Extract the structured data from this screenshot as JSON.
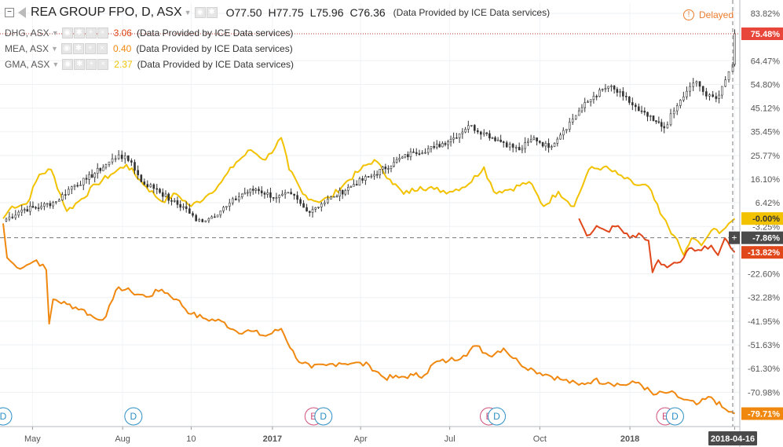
{
  "header": {
    "symbol": "REA GROUP FPO, D, ASX",
    "open": "O77.50",
    "high": "H77.75",
    "low": "L75.96",
    "close": "C76.36",
    "source": "(Data Provided by ICE Data services)",
    "delayed": "Delayed"
  },
  "legend": [
    {
      "symbol": "DHG, ASX",
      "value": "3.06",
      "color": "#e0471a",
      "source": "(Data Provided by ICE Data services)"
    },
    {
      "symbol": "MEA, ASX",
      "value": "0.40",
      "color": "#f0880f",
      "source": "(Data Provided by ICE Data services)"
    },
    {
      "symbol": "GMA, ASX",
      "value": "2.37",
      "color": "#f2c200",
      "source": "(Data Provided by ICE Data services)"
    }
  ],
  "chart_data": {
    "type": "line",
    "title": "",
    "x_tick_labels": [
      "May",
      "Aug",
      "10",
      "2017",
      "Apr",
      "Jul",
      "Oct",
      "2018",
      "18"
    ],
    "y_tick_labels": [
      "83.82%",
      "64.47%",
      "54.80%",
      "45.12%",
      "35.45%",
      "25.77%",
      "16.10%",
      "6.42%",
      "-3.25%",
      "-22.60%",
      "-32.28%",
      "-41.95%",
      "-51.63%",
      "-61.30%",
      "-70.98%"
    ],
    "y_unit": "percent change",
    "y_range": [
      -85,
      88
    ],
    "x_range": [
      "2016-04-01",
      "2018-04-20"
    ],
    "crosshair_date_label": "2018-04-16",
    "crosshair_value_label": "-7.86%",
    "last_value_labels": [
      {
        "series": "REA GROUP FPO, ASX",
        "label": "75.48%",
        "value": 75.48,
        "color": "#e8463a"
      },
      {
        "series": "GMA, ASX",
        "label": "-0.00%",
        "value": 0.0,
        "color": "#f2c200"
      },
      {
        "series": "DHG, ASX",
        "label": "-13.82%",
        "value": -13.82,
        "color": "#e0471a"
      },
      {
        "series": "MEA, ASX",
        "label": "-79.71%",
        "value": -79.71,
        "color": "#f0880f"
      }
    ],
    "events": [
      {
        "letter": "D",
        "date": "2016-04-01"
      },
      {
        "letter": "D",
        "date": "2016-08-12"
      },
      {
        "letter": "E",
        "date": "2017-02-12"
      },
      {
        "letter": "D",
        "date": "2017-02-22"
      },
      {
        "letter": "E",
        "date": "2017-08-10"
      },
      {
        "letter": "D",
        "date": "2017-08-18"
      },
      {
        "letter": "E",
        "date": "2018-02-06"
      },
      {
        "letter": "D",
        "date": "2018-02-16"
      }
    ],
    "series": [
      {
        "name": "REA GROUP FPO, ASX",
        "style": "candles",
        "color": "#333333",
        "points": [
          [
            "2016-04-01",
            -1.0
          ],
          [
            "2016-04-20",
            3.5
          ],
          [
            "2016-05-10",
            5.0
          ],
          [
            "2016-05-25",
            7.0
          ],
          [
            "2016-06-10",
            13.0
          ],
          [
            "2016-06-25",
            16.0
          ],
          [
            "2016-07-15",
            22.0
          ],
          [
            "2016-07-28",
            26.0
          ],
          [
            "2016-08-10",
            23.0
          ],
          [
            "2016-08-20",
            15.0
          ],
          [
            "2016-09-05",
            12.0
          ],
          [
            "2016-09-20",
            7.0
          ],
          [
            "2016-10-05",
            4.0
          ],
          [
            "2016-10-15",
            -1.0
          ],
          [
            "2016-10-28",
            0.0
          ],
          [
            "2016-11-15",
            5.0
          ],
          [
            "2016-12-01",
            10.0
          ],
          [
            "2016-12-15",
            12.0
          ],
          [
            "2017-01-05",
            8.5
          ],
          [
            "2017-01-20",
            10.0
          ],
          [
            "2017-02-05",
            3.0
          ],
          [
            "2017-02-20",
            6.0
          ],
          [
            "2017-03-05",
            9.0
          ],
          [
            "2017-03-25",
            14.0
          ],
          [
            "2017-04-15",
            18.0
          ],
          [
            "2017-05-05",
            23.0
          ],
          [
            "2017-05-25",
            27.0
          ],
          [
            "2017-06-15",
            29.0
          ],
          [
            "2017-07-05",
            33.0
          ],
          [
            "2017-07-20",
            38.0
          ],
          [
            "2017-08-05",
            35.0
          ],
          [
            "2017-08-25",
            31.0
          ],
          [
            "2017-09-10",
            28.0
          ],
          [
            "2017-09-25",
            33.0
          ],
          [
            "2017-10-10",
            29.0
          ],
          [
            "2017-10-25",
            36.0
          ],
          [
            "2017-11-10",
            44.0
          ],
          [
            "2017-11-25",
            50.0
          ],
          [
            "2017-12-10",
            54.0
          ],
          [
            "2017-12-25",
            50.0
          ],
          [
            "2018-01-10",
            44.0
          ],
          [
            "2018-01-25",
            40.0
          ],
          [
            "2018-02-05",
            37.0
          ],
          [
            "2018-02-15",
            44.0
          ],
          [
            "2018-02-28",
            52.0
          ],
          [
            "2018-03-10",
            56.0
          ],
          [
            "2018-03-20",
            50.0
          ],
          [
            "2018-03-30",
            49.0
          ],
          [
            "2018-04-05",
            54.0
          ],
          [
            "2018-04-12",
            60.0
          ],
          [
            "2018-04-16",
            63.0
          ],
          [
            "2018-04-18",
            75.5
          ]
        ]
      },
      {
        "name": "GMA, ASX",
        "style": "line",
        "color": "#f2c200",
        "points": [
          [
            "2016-04-01",
            0.0
          ],
          [
            "2016-04-10",
            5.0
          ],
          [
            "2016-04-25",
            6.0
          ],
          [
            "2016-05-08",
            18.0
          ],
          [
            "2016-05-20",
            20.0
          ],
          [
            "2016-06-05",
            3.0
          ],
          [
            "2016-06-20",
            8.0
          ],
          [
            "2016-07-05",
            14.0
          ],
          [
            "2016-07-20",
            18.0
          ],
          [
            "2016-08-05",
            22.0
          ],
          [
            "2016-08-25",
            13.0
          ],
          [
            "2016-09-10",
            7.0
          ],
          [
            "2016-09-25",
            10.0
          ],
          [
            "2016-10-10",
            5.0
          ],
          [
            "2016-10-25",
            9.0
          ],
          [
            "2016-11-10",
            15.0
          ],
          [
            "2016-11-25",
            23.0
          ],
          [
            "2016-12-10",
            28.0
          ],
          [
            "2016-12-25",
            24.0
          ],
          [
            "2017-01-10",
            33.0
          ],
          [
            "2017-01-18",
            20.0
          ],
          [
            "2017-02-01",
            10.0
          ],
          [
            "2017-02-15",
            7.0
          ],
          [
            "2017-03-01",
            8.5
          ],
          [
            "2017-03-15",
            14.0
          ],
          [
            "2017-04-01",
            20.0
          ],
          [
            "2017-04-15",
            24.0
          ],
          [
            "2017-05-01",
            16.0
          ],
          [
            "2017-05-15",
            10.0
          ],
          [
            "2017-06-01",
            13.0
          ],
          [
            "2017-06-15",
            12.0
          ],
          [
            "2017-07-01",
            11.0
          ],
          [
            "2017-07-20",
            14.0
          ],
          [
            "2017-08-05",
            21.0
          ],
          [
            "2017-08-15",
            11.0
          ],
          [
            "2017-09-01",
            12.0
          ],
          [
            "2017-09-20",
            15.0
          ],
          [
            "2017-10-05",
            5.0
          ],
          [
            "2017-10-20",
            11.0
          ],
          [
            "2017-11-05",
            5.0
          ],
          [
            "2017-11-20",
            20.0
          ],
          [
            "2017-12-05",
            21.0
          ],
          [
            "2017-12-20",
            18.0
          ],
          [
            "2018-01-05",
            14.0
          ],
          [
            "2018-01-20",
            13.0
          ],
          [
            "2018-02-01",
            2.0
          ],
          [
            "2018-02-15",
            -7.0
          ],
          [
            "2018-02-25",
            -15.0
          ],
          [
            "2018-03-05",
            -8.0
          ],
          [
            "2018-03-15",
            -11.0
          ],
          [
            "2018-03-25",
            -5.0
          ],
          [
            "2018-04-05",
            -5.0
          ],
          [
            "2018-04-12",
            -2.0
          ],
          [
            "2018-04-18",
            0.0
          ]
        ]
      },
      {
        "name": "DHG, ASX",
        "style": "line",
        "color": "#e0471a",
        "points": [
          [
            "2017-11-10",
            0.0
          ],
          [
            "2017-11-18",
            -7.0
          ],
          [
            "2017-11-28",
            -3.0
          ],
          [
            "2017-12-08",
            -5.0
          ],
          [
            "2017-12-20",
            -3.0
          ],
          [
            "2018-01-01",
            -8.0
          ],
          [
            "2018-01-10",
            -6.0
          ],
          [
            "2018-01-20",
            -9.0
          ],
          [
            "2018-01-24",
            -22.0
          ],
          [
            "2018-01-30",
            -17.0
          ],
          [
            "2018-02-08",
            -20.0
          ],
          [
            "2018-02-15",
            -18.0
          ],
          [
            "2018-02-25",
            -16.0
          ],
          [
            "2018-03-05",
            -12.0
          ],
          [
            "2018-03-15",
            -13.0
          ],
          [
            "2018-03-25",
            -11.0
          ],
          [
            "2018-04-01",
            -15.0
          ],
          [
            "2018-04-08",
            -8.0
          ],
          [
            "2018-04-14",
            -12.0
          ],
          [
            "2018-04-18",
            -13.8
          ]
        ]
      },
      {
        "name": "MEA, ASX",
        "style": "line",
        "color": "#f0880f",
        "points": [
          [
            "2016-04-01",
            -2.0
          ],
          [
            "2016-04-05",
            -16.0
          ],
          [
            "2016-04-15",
            -20.0
          ],
          [
            "2016-04-25",
            -19.0
          ],
          [
            "2016-05-05",
            -17.0
          ],
          [
            "2016-05-15",
            -21.0
          ],
          [
            "2016-05-18",
            -43.0
          ],
          [
            "2016-05-22",
            -33.0
          ],
          [
            "2016-06-05",
            -35.0
          ],
          [
            "2016-06-20",
            -37.0
          ],
          [
            "2016-07-05",
            -41.0
          ],
          [
            "2016-07-15",
            -40.0
          ],
          [
            "2016-07-22",
            -33.0
          ],
          [
            "2016-07-28",
            -28.0
          ],
          [
            "2016-08-10",
            -30.0
          ],
          [
            "2016-08-25",
            -32.0
          ],
          [
            "2016-09-10",
            -29.0
          ],
          [
            "2016-09-25",
            -33.0
          ],
          [
            "2016-10-10",
            -39.0
          ],
          [
            "2016-10-25",
            -41.0
          ],
          [
            "2016-11-10",
            -42.0
          ],
          [
            "2016-11-25",
            -46.0
          ],
          [
            "2016-12-10",
            -46.0
          ],
          [
            "2016-12-25",
            -48.0
          ],
          [
            "2017-01-10",
            -45.0
          ],
          [
            "2017-01-25",
            -57.0
          ],
          [
            "2017-02-10",
            -61.0
          ],
          [
            "2017-02-25",
            -60.0
          ],
          [
            "2017-03-10",
            -59.0
          ],
          [
            "2017-03-25",
            -59.0
          ],
          [
            "2017-04-10",
            -60.0
          ],
          [
            "2017-04-25",
            -65.0
          ],
          [
            "2017-05-10",
            -65.0
          ],
          [
            "2017-05-25",
            -64.0
          ],
          [
            "2017-06-05",
            -64.0
          ],
          [
            "2017-06-15",
            -59.0
          ],
          [
            "2017-06-30",
            -58.0
          ],
          [
            "2017-07-15",
            -56.0
          ],
          [
            "2017-07-28",
            -52.0
          ],
          [
            "2017-08-10",
            -56.0
          ],
          [
            "2017-08-25",
            -53.0
          ],
          [
            "2017-09-10",
            -59.0
          ],
          [
            "2017-09-25",
            -62.0
          ],
          [
            "2017-10-10",
            -64.0
          ],
          [
            "2017-10-25",
            -66.0
          ],
          [
            "2017-11-10",
            -68.0
          ],
          [
            "2017-11-25",
            -66.0
          ],
          [
            "2017-12-10",
            -67.0
          ],
          [
            "2017-12-25",
            -68.0
          ],
          [
            "2018-01-10",
            -67.0
          ],
          [
            "2018-01-25",
            -72.0
          ],
          [
            "2018-02-10",
            -71.0
          ],
          [
            "2018-02-25",
            -74.0
          ],
          [
            "2018-03-10",
            -76.0
          ],
          [
            "2018-03-25",
            -73.0
          ],
          [
            "2018-04-05",
            -77.0
          ],
          [
            "2018-04-12",
            -79.0
          ],
          [
            "2018-04-18",
            -79.7
          ]
        ]
      }
    ]
  }
}
